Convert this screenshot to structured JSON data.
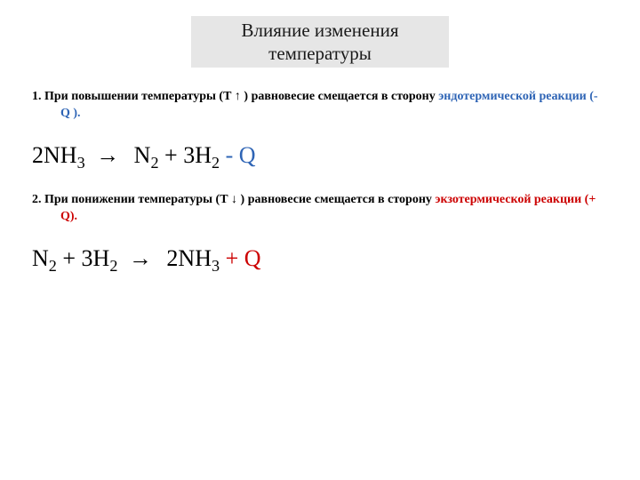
{
  "colors": {
    "background": "#ffffff",
    "title_box_bg": "#e6e6e6",
    "text": "#000000",
    "endo": "#2e64b5",
    "exo": "#cc0000"
  },
  "title": {
    "line1": "Влияние изменения",
    "line2": "температуры"
  },
  "para1": {
    "lead": "1. При повышении температуры (Т ↑ ) равновесие смещается в сторону ",
    "endo": "эндотермической реакции (- ",
    "q": "Q",
    "tail": " )."
  },
  "eq1": {
    "lhs_coef": "2",
    "lhs_species": "NH",
    "lhs_sub": "3",
    "arrow": "→",
    "r1_species": "N",
    "r1_sub": "2",
    "plus": " +   ",
    "r2_coef": "3",
    "r2_species": "H",
    "r2_sub": "2",
    "q_sign": " - ",
    "q": "Q"
  },
  "para2": {
    "lead": "2. При понижении температуры (Т ↓ ) равновесие смещается в сторону ",
    "exo": "экзотермической реакции (+ Q).",
    "tail": ""
  },
  "eq2": {
    "l1_species": "N",
    "l1_sub": "2",
    "plus": " +   ",
    "l2_coef": "3",
    "l2_species": "H",
    "l2_sub": "2",
    "arrow": "→",
    "r_coef": "2",
    "r_species": "NH",
    "r_sub": "3",
    "q_sign": " + ",
    "q": "Q"
  }
}
